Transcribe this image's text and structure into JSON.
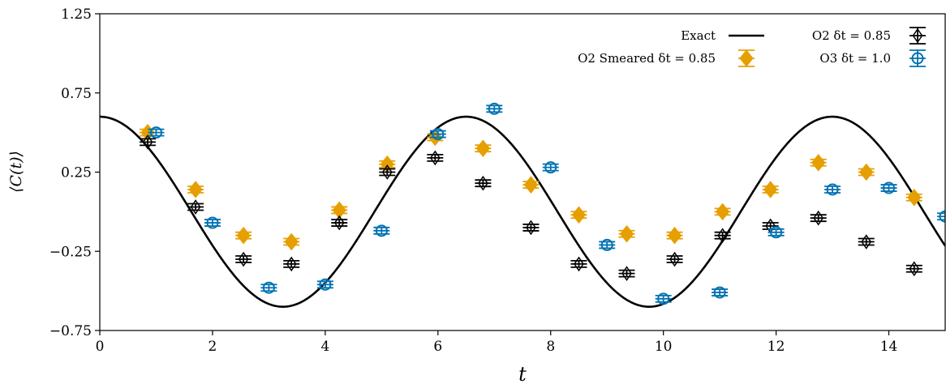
{
  "chart_data": {
    "type": "scatter",
    "xlabel": "t",
    "ylabel": "⟨C(t)⟩",
    "xlim": [
      0,
      15
    ],
    "ylim": [
      -0.75,
      1.25
    ],
    "xticks": [
      0,
      2,
      4,
      6,
      8,
      10,
      12,
      14
    ],
    "xtick_labels": [
      "0",
      "2",
      "4",
      "6",
      "8",
      "10",
      "12",
      "14"
    ],
    "yticks": [
      -0.75,
      -0.25,
      0.25,
      0.75,
      1.25
    ],
    "ytick_labels": [
      "−0.75",
      "−0.25",
      "0.25",
      "0.75",
      "1.25"
    ],
    "grid": false,
    "legend_position": "top-right",
    "series": [
      {
        "name": "Exact",
        "kind": "line",
        "color": "#000000",
        "function": "0.6*cos(0.967*t)"
      },
      {
        "name": "O2 δt = 0.85",
        "kind": "errorbar",
        "marker": "thin-diamond-open",
        "color": "#000000",
        "x": [
          0.85,
          1.7,
          2.55,
          3.4,
          4.25,
          5.1,
          5.95,
          6.8,
          7.65,
          8.5,
          9.35,
          10.2,
          11.05,
          11.9,
          12.75,
          13.6,
          14.45
        ],
        "y": [
          0.44,
          0.03,
          -0.3,
          -0.33,
          -0.07,
          0.25,
          0.34,
          0.18,
          -0.1,
          -0.33,
          -0.39,
          -0.3,
          -0.15,
          -0.09,
          -0.04,
          -0.19,
          -0.36
        ],
        "yerr": [
          0.02,
          0.02,
          0.02,
          0.02,
          0.02,
          0.02,
          0.02,
          0.02,
          0.02,
          0.02,
          0.02,
          0.02,
          0.02,
          0.02,
          0.02,
          0.02,
          0.02
        ]
      },
      {
        "name": "O2 Smeared δt = 0.85",
        "kind": "errorbar",
        "marker": "thick-diamond-filled",
        "color": "#e69f00",
        "x": [
          0.85,
          1.7,
          2.55,
          3.4,
          4.25,
          5.1,
          5.95,
          6.8,
          7.65,
          8.5,
          9.35,
          10.2,
          11.05,
          11.9,
          12.75,
          13.6,
          14.45
        ],
        "y": [
          0.5,
          0.14,
          -0.15,
          -0.19,
          0.01,
          0.3,
          0.47,
          0.4,
          0.17,
          -0.02,
          -0.14,
          -0.15,
          0.0,
          0.14,
          0.31,
          0.25,
          0.09
        ],
        "yerr": [
          0.02,
          0.02,
          0.02,
          0.02,
          0.02,
          0.02,
          0.02,
          0.02,
          0.02,
          0.02,
          0.02,
          0.02,
          0.02,
          0.02,
          0.02,
          0.02,
          0.02
        ]
      },
      {
        "name": "O3 δt = 1.0",
        "kind": "errorbar",
        "marker": "circle-open",
        "color": "#0072b2",
        "x": [
          1.0,
          2.0,
          3.0,
          4.0,
          5.0,
          6.0,
          7.0,
          8.0,
          9.0,
          10.0,
          11.0,
          12.0,
          13.0,
          14.0,
          15.0
        ],
        "y": [
          0.5,
          -0.07,
          -0.48,
          -0.46,
          -0.12,
          0.49,
          0.65,
          0.28,
          -0.21,
          -0.55,
          -0.51,
          -0.13,
          0.14,
          0.15,
          -0.03
        ],
        "yerr": [
          0.02,
          0.02,
          0.02,
          0.02,
          0.02,
          0.02,
          0.02,
          0.02,
          0.02,
          0.02,
          0.02,
          0.02,
          0.02,
          0.02,
          0.02
        ]
      }
    ],
    "legend": {
      "col1": [
        {
          "label": "Exact",
          "series_index": 0
        },
        {
          "label": "O2 Smeared δt = 0.85",
          "series_index": 2
        }
      ],
      "col2": [
        {
          "label": "O2 δt = 0.85",
          "series_index": 1
        },
        {
          "label": "O3 δt = 1.0",
          "series_index": 3
        }
      ]
    }
  }
}
